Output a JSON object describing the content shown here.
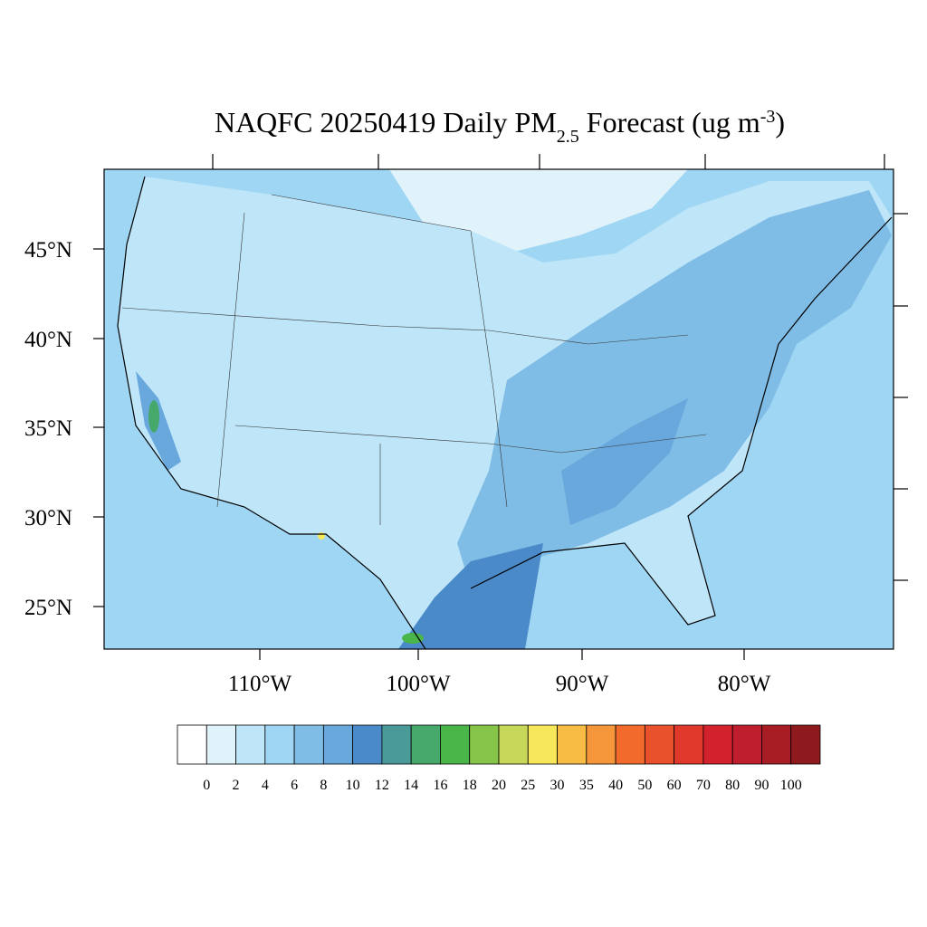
{
  "map": {
    "title": {
      "main": "NAQFC 20250419 Daily PM",
      "subscript": "2.5",
      "after": " Forecast (ug m",
      "superscript": "-3",
      "end": ")"
    },
    "lat_labels": [
      "45°N",
      "40°N",
      "35°N",
      "30°N",
      "25°N"
    ],
    "lon_labels": [
      "110°W",
      "100°W",
      "90°W",
      "80°W"
    ],
    "colorbar": {
      "labels": [
        0,
        2,
        4,
        6,
        8,
        10,
        12,
        14,
        16,
        18,
        20,
        25,
        30,
        35,
        40,
        50,
        60,
        70,
        80,
        90,
        100
      ],
      "colors": [
        "#ffffff",
        "#e0f3fb",
        "#bfe6f8",
        "#9fd6f3",
        "#80bde6",
        "#68a8dc",
        "#4a8ac9",
        "#4a9a9a",
        "#47a86c",
        "#4ab548",
        "#86c54a",
        "#c6d75a",
        "#f7e75a",
        "#f8bb44",
        "#f6963a",
        "#f26a2c",
        "#e9502c",
        "#e0382a",
        "#d4212e",
        "#bf1e2e",
        "#a81d24",
        "#8f1a1d"
      ]
    }
  }
}
